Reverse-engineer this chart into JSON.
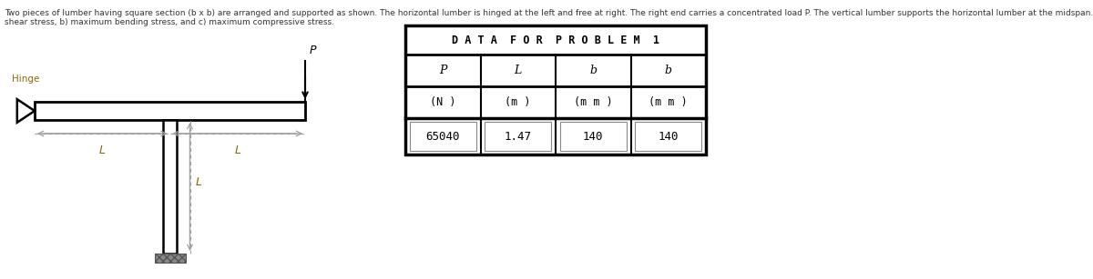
{
  "description_text_line1": "Two pieces of lumber having square section (b x b) are arranged and supported as shown. The horizontal lumber is hinged at the left and free at right. The right end carries a concentrated load P. The vertical lumber supports the horizontal lumber at the midspan. Find the following: a) maximum",
  "description_text_line2": "shear stress, b) maximum bending stress, and c) maximum compressive stress.",
  "hinge_label": "Hinge",
  "P_label": "P",
  "L_label": "L",
  "table_title": "D A T A  F O R  P R O B L E M  1",
  "col_headers": [
    "P",
    "L",
    "b",
    "b"
  ],
  "col_units": [
    "(N )",
    "(m )",
    "(m m )",
    "(m m )"
  ],
  "col_values": [
    "65040",
    "1.47",
    "140",
    "140"
  ],
  "bg_color": "#ffffff",
  "text_color": "#000000",
  "lumber_color": "#000000",
  "label_color": "#8B6914",
  "dashed_color": "#a0a0a0",
  "desc_color": "#333333"
}
